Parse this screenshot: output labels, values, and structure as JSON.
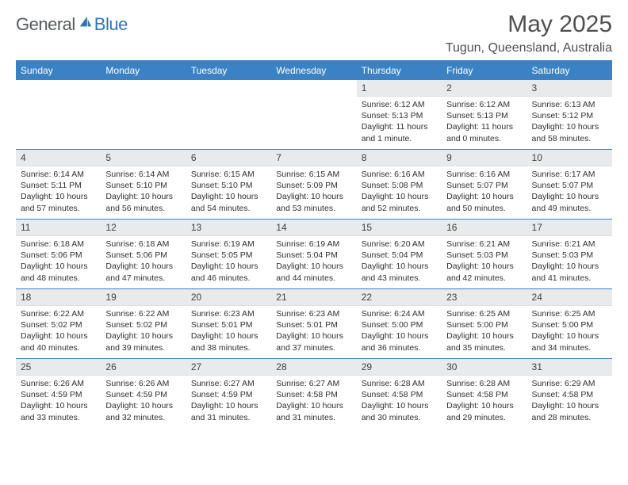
{
  "brand": {
    "general": "General",
    "blue": "Blue"
  },
  "title": "May 2025",
  "location": "Tugun, Queensland, Australia",
  "colors": {
    "header_bg": "#3a82c4",
    "header_text": "#ffffff",
    "daynum_bg": "#e9eaeb",
    "rule": "#3a82c4",
    "title_color": "#505050",
    "logo_gray": "#555a5e",
    "logo_blue": "#2f75b5"
  },
  "columns": [
    "Sunday",
    "Monday",
    "Tuesday",
    "Wednesday",
    "Thursday",
    "Friday",
    "Saturday"
  ],
  "weeks": [
    [
      {
        "empty": true
      },
      {
        "empty": true
      },
      {
        "empty": true
      },
      {
        "empty": true
      },
      {
        "num": "1",
        "sunrise": "6:12 AM",
        "sunset": "5:13 PM",
        "daylight": "11 hours and 1 minute."
      },
      {
        "num": "2",
        "sunrise": "6:12 AM",
        "sunset": "5:13 PM",
        "daylight": "11 hours and 0 minutes."
      },
      {
        "num": "3",
        "sunrise": "6:13 AM",
        "sunset": "5:12 PM",
        "daylight": "10 hours and 58 minutes."
      }
    ],
    [
      {
        "num": "4",
        "sunrise": "6:14 AM",
        "sunset": "5:11 PM",
        "daylight": "10 hours and 57 minutes."
      },
      {
        "num": "5",
        "sunrise": "6:14 AM",
        "sunset": "5:10 PM",
        "daylight": "10 hours and 56 minutes."
      },
      {
        "num": "6",
        "sunrise": "6:15 AM",
        "sunset": "5:10 PM",
        "daylight": "10 hours and 54 minutes."
      },
      {
        "num": "7",
        "sunrise": "6:15 AM",
        "sunset": "5:09 PM",
        "daylight": "10 hours and 53 minutes."
      },
      {
        "num": "8",
        "sunrise": "6:16 AM",
        "sunset": "5:08 PM",
        "daylight": "10 hours and 52 minutes."
      },
      {
        "num": "9",
        "sunrise": "6:16 AM",
        "sunset": "5:07 PM",
        "daylight": "10 hours and 50 minutes."
      },
      {
        "num": "10",
        "sunrise": "6:17 AM",
        "sunset": "5:07 PM",
        "daylight": "10 hours and 49 minutes."
      }
    ],
    [
      {
        "num": "11",
        "sunrise": "6:18 AM",
        "sunset": "5:06 PM",
        "daylight": "10 hours and 48 minutes."
      },
      {
        "num": "12",
        "sunrise": "6:18 AM",
        "sunset": "5:06 PM",
        "daylight": "10 hours and 47 minutes."
      },
      {
        "num": "13",
        "sunrise": "6:19 AM",
        "sunset": "5:05 PM",
        "daylight": "10 hours and 46 minutes."
      },
      {
        "num": "14",
        "sunrise": "6:19 AM",
        "sunset": "5:04 PM",
        "daylight": "10 hours and 44 minutes."
      },
      {
        "num": "15",
        "sunrise": "6:20 AM",
        "sunset": "5:04 PM",
        "daylight": "10 hours and 43 minutes."
      },
      {
        "num": "16",
        "sunrise": "6:21 AM",
        "sunset": "5:03 PM",
        "daylight": "10 hours and 42 minutes."
      },
      {
        "num": "17",
        "sunrise": "6:21 AM",
        "sunset": "5:03 PM",
        "daylight": "10 hours and 41 minutes."
      }
    ],
    [
      {
        "num": "18",
        "sunrise": "6:22 AM",
        "sunset": "5:02 PM",
        "daylight": "10 hours and 40 minutes."
      },
      {
        "num": "19",
        "sunrise": "6:22 AM",
        "sunset": "5:02 PM",
        "daylight": "10 hours and 39 minutes."
      },
      {
        "num": "20",
        "sunrise": "6:23 AM",
        "sunset": "5:01 PM",
        "daylight": "10 hours and 38 minutes."
      },
      {
        "num": "21",
        "sunrise": "6:23 AM",
        "sunset": "5:01 PM",
        "daylight": "10 hours and 37 minutes."
      },
      {
        "num": "22",
        "sunrise": "6:24 AM",
        "sunset": "5:00 PM",
        "daylight": "10 hours and 36 minutes."
      },
      {
        "num": "23",
        "sunrise": "6:25 AM",
        "sunset": "5:00 PM",
        "daylight": "10 hours and 35 minutes."
      },
      {
        "num": "24",
        "sunrise": "6:25 AM",
        "sunset": "5:00 PM",
        "daylight": "10 hours and 34 minutes."
      }
    ],
    [
      {
        "num": "25",
        "sunrise": "6:26 AM",
        "sunset": "4:59 PM",
        "daylight": "10 hours and 33 minutes."
      },
      {
        "num": "26",
        "sunrise": "6:26 AM",
        "sunset": "4:59 PM",
        "daylight": "10 hours and 32 minutes."
      },
      {
        "num": "27",
        "sunrise": "6:27 AM",
        "sunset": "4:59 PM",
        "daylight": "10 hours and 31 minutes."
      },
      {
        "num": "28",
        "sunrise": "6:27 AM",
        "sunset": "4:58 PM",
        "daylight": "10 hours and 31 minutes."
      },
      {
        "num": "29",
        "sunrise": "6:28 AM",
        "sunset": "4:58 PM",
        "daylight": "10 hours and 30 minutes."
      },
      {
        "num": "30",
        "sunrise": "6:28 AM",
        "sunset": "4:58 PM",
        "daylight": "10 hours and 29 minutes."
      },
      {
        "num": "31",
        "sunrise": "6:29 AM",
        "sunset": "4:58 PM",
        "daylight": "10 hours and 28 minutes."
      }
    ]
  ],
  "labels": {
    "sunrise": "Sunrise: ",
    "sunset": "Sunset: ",
    "daylight": "Daylight: "
  }
}
